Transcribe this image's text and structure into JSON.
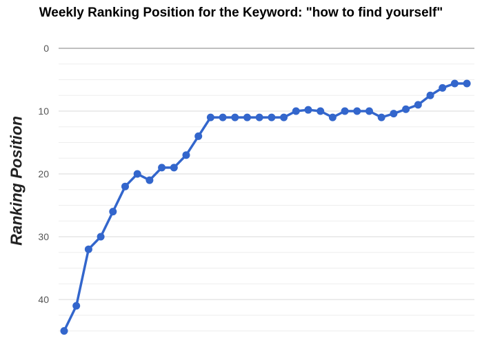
{
  "chart_data": {
    "type": "line",
    "title": "Weekly Ranking Position for the Keyword: \"how to find yourself\"",
    "xlabel": "",
    "ylabel": "Ranking Position",
    "y_reversed": true,
    "ylim": [
      0,
      45
    ],
    "yticks": [
      0,
      10,
      20,
      30,
      40
    ],
    "grid": true,
    "series": [
      {
        "values": [
          45,
          41,
          32,
          30,
          26,
          22,
          20,
          21,
          19,
          19,
          17,
          14,
          11,
          11,
          11,
          11,
          11,
          11,
          11,
          10,
          9.8,
          10,
          11,
          10,
          10,
          10,
          11,
          10.4,
          9.7,
          9,
          7.5,
          6.3,
          5.6,
          5.6
        ]
      }
    ],
    "colors": {
      "line": "#3366cc",
      "grid": "#e6e6e6",
      "zero_line": "#999999"
    }
  }
}
